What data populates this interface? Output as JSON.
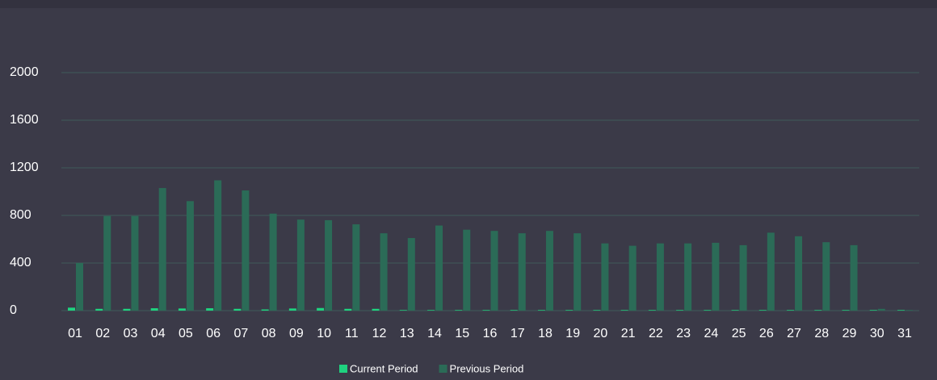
{
  "chart_data": {
    "type": "bar",
    "categories": [
      "01",
      "02",
      "03",
      "04",
      "05",
      "06",
      "07",
      "08",
      "09",
      "10",
      "11",
      "12",
      "13",
      "14",
      "15",
      "16",
      "17",
      "18",
      "19",
      "20",
      "21",
      "22",
      "23",
      "24",
      "25",
      "26",
      "27",
      "28",
      "29",
      "30",
      "31"
    ],
    "series": [
      {
        "name": "Current Period",
        "color": "#1fd27f",
        "values": [
          25,
          15,
          15,
          20,
          18,
          20,
          15,
          10,
          18,
          22,
          15,
          15,
          5,
          5,
          5,
          5,
          5,
          5,
          5,
          5,
          5,
          5,
          5,
          5,
          5,
          5,
          5,
          5,
          5,
          5,
          5
        ]
      },
      {
        "name": "Previous Period",
        "color": "#2b6b57",
        "values": [
          400,
          795,
          795,
          1030,
          920,
          1095,
          1010,
          815,
          765,
          760,
          725,
          650,
          610,
          715,
          680,
          670,
          650,
          670,
          650,
          565,
          545,
          565,
          565,
          570,
          550,
          655,
          625,
          575,
          550,
          15,
          5
        ]
      }
    ],
    "ylim": [
      0,
      2000
    ],
    "yticks": [
      0,
      400,
      800,
      1200,
      1600,
      2000
    ],
    "grid": true,
    "legend": "bottom"
  }
}
